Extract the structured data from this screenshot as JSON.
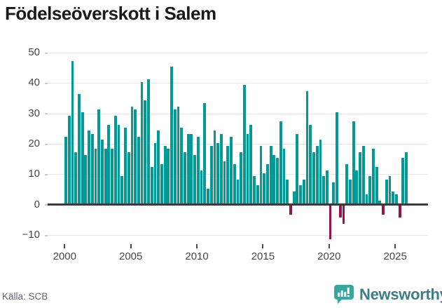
{
  "footer": {
    "source": "Källa: SCB",
    "logo_text": "Newsworthy"
  },
  "chart_data": {
    "type": "bar",
    "title": "Födelseöverskott i Salem",
    "frequency": "quarterly",
    "x_tick_labels": [
      "2000",
      "2005",
      "2010",
      "2015",
      "2020",
      "2025"
    ],
    "y_ticks": [
      50,
      40,
      30,
      20,
      10,
      0,
      -10
    ],
    "ylim": [
      -13,
      52
    ],
    "grid": "horizontal",
    "legend": "none",
    "positive_color": "#009b96",
    "negative_color": "#9e1048",
    "series_by_year": [
      {
        "year": 2000,
        "values": [
          22,
          29,
          47,
          17
        ]
      },
      {
        "year": 2001,
        "values": [
          36,
          30,
          16,
          24
        ]
      },
      {
        "year": 2002,
        "values": [
          23,
          18,
          31,
          21
        ]
      },
      {
        "year": 2003,
        "values": [
          18,
          26,
          18,
          29
        ]
      },
      {
        "year": 2004,
        "values": [
          26,
          9,
          25,
          17
        ]
      },
      {
        "year": 2005,
        "values": [
          32,
          31,
          22,
          40
        ]
      },
      {
        "year": 2006,
        "values": [
          34,
          41,
          12,
          20
        ]
      },
      {
        "year": 2007,
        "values": [
          24,
          13,
          19,
          18
        ]
      },
      {
        "year": 2008,
        "values": [
          45,
          31,
          32,
          25
        ]
      },
      {
        "year": 2009,
        "values": [
          17,
          23,
          23,
          16
        ]
      },
      {
        "year": 2010,
        "values": [
          22,
          11,
          33,
          5
        ]
      },
      {
        "year": 2011,
        "values": [
          19,
          24,
          20,
          23
        ]
      },
      {
        "year": 2012,
        "values": [
          14,
          19,
          22,
          13
        ]
      },
      {
        "year": 2013,
        "values": [
          8,
          17,
          39,
          23
        ]
      },
      {
        "year": 2014,
        "values": [
          26,
          9,
          6,
          19
        ]
      },
      {
        "year": 2015,
        "values": [
          10,
          13,
          19,
          16
        ]
      },
      {
        "year": 2016,
        "values": [
          15,
          27,
          18,
          8
        ]
      },
      {
        "year": 2017,
        "values": [
          -3,
          4,
          23,
          6
        ]
      },
      {
        "year": 2018,
        "values": [
          8,
          37,
          26,
          17
        ]
      },
      {
        "year": 2019,
        "values": [
          19,
          21,
          9,
          11
        ]
      },
      {
        "year": 2020,
        "values": [
          -11,
          7,
          30,
          -4
        ]
      },
      {
        "year": 2021,
        "values": [
          -6,
          13,
          8,
          27
        ]
      },
      {
        "year": 2022,
        "values": [
          11,
          17,
          19,
          3
        ]
      },
      {
        "year": 2023,
        "values": [
          9,
          18,
          12,
          1
        ]
      },
      {
        "year": 2024,
        "values": [
          -3,
          8,
          9,
          4
        ]
      },
      {
        "year": 2025,
        "values": [
          3,
          -4,
          15,
          17
        ]
      }
    ]
  }
}
